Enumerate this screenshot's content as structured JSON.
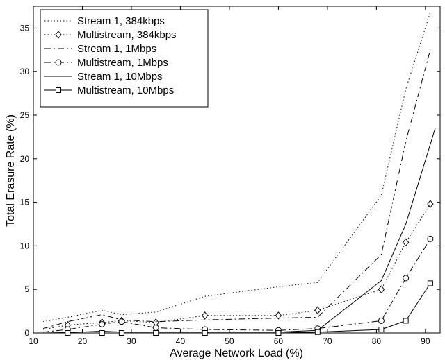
{
  "chart_data": {
    "type": "line",
    "xlabel": "Average Network Load (%)",
    "ylabel": "Total Erasure Rate (%)",
    "xlim": [
      10,
      93
    ],
    "ylim": [
      0,
      37.5
    ],
    "xticks": [
      10,
      20,
      30,
      40,
      50,
      60,
      70,
      80,
      90
    ],
    "yticks": [
      0,
      5,
      10,
      15,
      20,
      25,
      30,
      35
    ],
    "grid": false,
    "legend_position": "top-left",
    "series": [
      {
        "name": "Stream 1, 384kbps",
        "line": "dotted",
        "marker": "none",
        "x": [
          12,
          17,
          24,
          28,
          35,
          45,
          60,
          68,
          81,
          86,
          91
        ],
        "y": [
          1.3,
          1.8,
          2.6,
          2.1,
          2.4,
          4.2,
          5.3,
          5.8,
          15.8,
          28,
          36.8
        ]
      },
      {
        "name": "Multistream, 384kbps",
        "line": "dotted",
        "marker": "diamond",
        "x": [
          12,
          17,
          24,
          28,
          35,
          45,
          60,
          68,
          81,
          86,
          91
        ],
        "y": [
          0.4,
          0.9,
          1.2,
          1.4,
          1.2,
          2.0,
          2.0,
          2.6,
          5.0,
          10.4,
          14.8
        ]
      },
      {
        "name": "Stream 1, 1Mbps",
        "line": "dashdot",
        "marker": "none",
        "x": [
          12,
          17,
          24,
          28,
          35,
          45,
          60,
          68,
          81,
          86,
          91
        ],
        "y": [
          0.5,
          1.3,
          2.1,
          1.5,
          1.3,
          1.5,
          1.7,
          1.8,
          9.0,
          22,
          32.5
        ]
      },
      {
        "name": "Multistream, 1Mbps",
        "line": "dashdot",
        "marker": "circle",
        "x": [
          12,
          17,
          24,
          28,
          35,
          45,
          60,
          68,
          81,
          86,
          91
        ],
        "y": [
          0.1,
          0.4,
          1.0,
          1.3,
          0.6,
          0.4,
          0.3,
          0.5,
          1.4,
          6.3,
          10.8
        ]
      },
      {
        "name": "Stream 1, 10Mbps",
        "line": "solid",
        "marker": "none",
        "x": [
          12,
          17,
          24,
          28,
          35,
          45,
          60,
          68,
          81,
          86,
          92
        ],
        "y": [
          0.0,
          0.05,
          0.2,
          0.1,
          0.1,
          0.1,
          0.1,
          0.3,
          6.0,
          12.5,
          23.5
        ]
      },
      {
        "name": "Multistream, 10Mbps",
        "line": "solid",
        "marker": "square",
        "x": [
          12,
          17,
          24,
          28,
          35,
          45,
          60,
          68,
          81,
          86,
          91
        ],
        "y": [
          0.0,
          0.0,
          0.0,
          0.0,
          0.0,
          0.0,
          0.0,
          0.1,
          0.4,
          1.4,
          5.7
        ]
      }
    ]
  }
}
